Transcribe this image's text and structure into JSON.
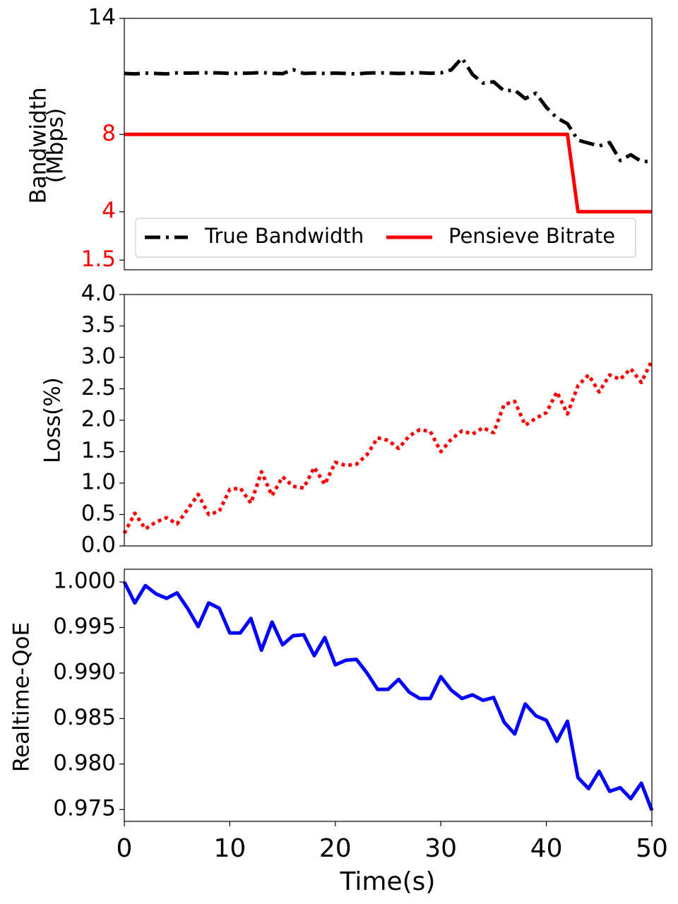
{
  "chart_data": [
    {
      "type": "line",
      "ylabel_lines": [
        "Bandwidth",
        "(Mbps)"
      ],
      "xlim": [
        0,
        50
      ],
      "ylim": [
        1,
        14
      ],
      "yticks": [
        {
          "value": 1.5,
          "label": "1.5",
          "color": "#ff0000"
        },
        {
          "value": 4,
          "label": "4",
          "color": "#ff0000"
        },
        {
          "value": 8,
          "label": "8",
          "color": "#ff0000"
        },
        {
          "value": 14,
          "label": "14",
          "color": "#000000"
        }
      ],
      "legend_position": "bottom",
      "series": [
        {
          "name": "True Bandwidth",
          "color": "#000000",
          "style": "dashdot",
          "x": [
            0,
            1,
            2,
            3,
            4,
            5,
            6,
            7,
            8,
            9,
            10,
            11,
            12,
            13,
            14,
            15,
            16,
            17,
            18,
            19,
            20,
            21,
            22,
            23,
            24,
            25,
            26,
            27,
            28,
            29,
            30,
            31,
            32,
            33,
            34,
            35,
            36,
            37,
            38,
            39,
            40,
            41,
            42,
            43,
            44,
            45,
            46,
            47,
            48,
            49,
            50
          ],
          "values": [
            11.15,
            11.13,
            11.17,
            11.15,
            11.13,
            11.18,
            11.17,
            11.18,
            11.19,
            11.18,
            11.15,
            11.16,
            11.17,
            11.2,
            11.16,
            11.14,
            11.35,
            11.15,
            11.17,
            11.15,
            11.17,
            11.15,
            11.13,
            11.17,
            11.19,
            11.17,
            11.15,
            11.17,
            11.19,
            11.16,
            11.18,
            11.34,
            11.95,
            11.1,
            10.65,
            10.72,
            10.25,
            10.29,
            9.85,
            10.13,
            9.4,
            8.85,
            8.55,
            7.7,
            7.55,
            7.4,
            7.58,
            6.65,
            6.95,
            6.6,
            6.6
          ]
        },
        {
          "name": "Pensieve Bitrate",
          "color": "#ff0000",
          "style": "solid",
          "x": [
            0,
            42,
            43,
            50
          ],
          "values": [
            8,
            8,
            4,
            4
          ]
        }
      ]
    },
    {
      "type": "line",
      "ylabel": "Loss(%)",
      "xlim": [
        0,
        50
      ],
      "ylim": [
        0,
        4
      ],
      "yticks": [
        {
          "value": 0,
          "label": "0.0"
        },
        {
          "value": 0.5,
          "label": "0.5"
        },
        {
          "value": 1,
          "label": "1.0"
        },
        {
          "value": 1.5,
          "label": "1.5"
        },
        {
          "value": 2,
          "label": "2.0"
        },
        {
          "value": 2.5,
          "label": "2.5"
        },
        {
          "value": 3,
          "label": "3.0"
        },
        {
          "value": 3.5,
          "label": "3.5"
        },
        {
          "value": 4,
          "label": "4.0"
        }
      ],
      "series": [
        {
          "color": "#ff0000",
          "style": "dotted",
          "x": [
            0,
            1,
            2,
            3,
            4,
            5,
            6,
            7,
            8,
            9,
            10,
            11,
            12,
            13,
            14,
            15,
            16,
            17,
            18,
            19,
            20,
            21,
            22,
            23,
            24,
            25,
            26,
            27,
            28,
            29,
            30,
            31,
            32,
            33,
            34,
            35,
            36,
            37,
            38,
            39,
            40,
            41,
            42,
            43,
            44,
            45,
            46,
            47,
            48,
            49,
            50
          ],
          "values": [
            0.2,
            0.52,
            0.27,
            0.38,
            0.45,
            0.35,
            0.58,
            0.82,
            0.5,
            0.55,
            0.9,
            0.92,
            0.68,
            1.18,
            0.8,
            1.1,
            0.95,
            0.92,
            1.25,
            0.98,
            1.33,
            1.28,
            1.3,
            1.45,
            1.72,
            1.68,
            1.55,
            1.75,
            1.85,
            1.82,
            1.5,
            1.7,
            1.83,
            1.78,
            1.88,
            1.8,
            2.25,
            2.3,
            1.92,
            2.03,
            2.12,
            2.45,
            2.1,
            2.55,
            2.72,
            2.45,
            2.72,
            2.65,
            2.82,
            2.6,
            2.95
          ]
        }
      ]
    },
    {
      "type": "line",
      "ylabel": "Realtime-QoE",
      "xlabel": "Time(s)",
      "xlim": [
        0,
        50
      ],
      "ylim": [
        0.9737,
        1.0014
      ],
      "xticks": [
        {
          "value": 0,
          "label": "0"
        },
        {
          "value": 10,
          "label": "10"
        },
        {
          "value": 20,
          "label": "20"
        },
        {
          "value": 30,
          "label": "30"
        },
        {
          "value": 40,
          "label": "40"
        },
        {
          "value": 50,
          "label": "50"
        }
      ],
      "yticks": [
        {
          "value": 0.975,
          "label": "0.975"
        },
        {
          "value": 0.98,
          "label": "0.980"
        },
        {
          "value": 0.985,
          "label": "0.985"
        },
        {
          "value": 0.99,
          "label": "0.990"
        },
        {
          "value": 0.995,
          "label": "0.995"
        },
        {
          "value": 1.0,
          "label": "1.000"
        }
      ],
      "series": [
        {
          "color": "#0000ff",
          "style": "solid",
          "x": [
            0,
            1,
            2,
            3,
            4,
            5,
            6,
            7,
            8,
            9,
            10,
            11,
            12,
            13,
            14,
            15,
            16,
            17,
            18,
            19,
            20,
            21,
            22,
            23,
            24,
            25,
            26,
            27,
            28,
            29,
            30,
            31,
            32,
            33,
            34,
            35,
            36,
            37,
            38,
            39,
            40,
            41,
            42,
            43,
            44,
            45,
            46,
            47,
            48,
            49,
            50
          ],
          "values": [
            1.0,
            0.9977,
            0.9996,
            0.9987,
            0.9982,
            0.9988,
            0.9971,
            0.9951,
            0.9977,
            0.9971,
            0.9944,
            0.9944,
            0.996,
            0.9925,
            0.9956,
            0.9931,
            0.9941,
            0.9942,
            0.9919,
            0.9939,
            0.9909,
            0.9914,
            0.9915,
            0.99,
            0.9882,
            0.9882,
            0.9893,
            0.9879,
            0.9872,
            0.9872,
            0.9896,
            0.9881,
            0.9872,
            0.9876,
            0.987,
            0.9873,
            0.9846,
            0.9833,
            0.9866,
            0.9853,
            0.9848,
            0.9825,
            0.9847,
            0.9785,
            0.9773,
            0.9792,
            0.977,
            0.9774,
            0.9762,
            0.9779,
            0.9749
          ]
        }
      ]
    }
  ]
}
